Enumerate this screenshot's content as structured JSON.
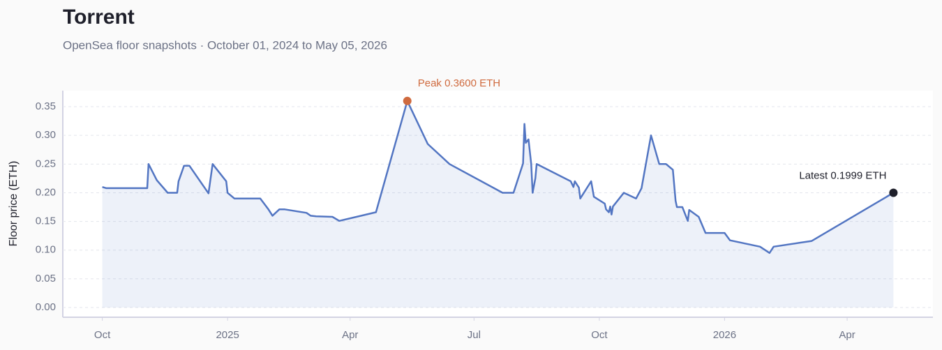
{
  "chart_data": {
    "type": "line",
    "title": "Torrent",
    "subtitle": "OpenSea floor snapshots · October 01, 2024 to May 05, 2026",
    "y_label": "Floor price (ETH)",
    "peak_label": "Peak 0.3600 ETH",
    "latest_label": "Latest 0.1999 ETH",
    "x": [
      "2024-10-01",
      "2024-10-04",
      "2024-11-03",
      "2024-11-04",
      "2024-11-10",
      "2024-11-18",
      "2024-11-25",
      "2024-11-26",
      "2024-11-30",
      "2024-12-04",
      "2024-12-18",
      "2024-12-21",
      "2024-12-31",
      "2025-01-01",
      "2025-01-06",
      "2025-01-25",
      "2025-01-31",
      "2025-02-03",
      "2025-02-08",
      "2025-02-12",
      "2025-02-28",
      "2025-03-03",
      "2025-03-07",
      "2025-03-19",
      "2025-03-24",
      "2025-04-20",
      "2025-05-13",
      "2025-05-28",
      "2025-06-13",
      "2025-07-22",
      "2025-07-30",
      "2025-08-06",
      "2025-08-07",
      "2025-08-08",
      "2025-08-10",
      "2025-08-12",
      "2025-08-13",
      "2025-08-15",
      "2025-08-16",
      "2025-09-10",
      "2025-09-12",
      "2025-09-13",
      "2025-09-16",
      "2025-09-17",
      "2025-09-25",
      "2025-09-27",
      "2025-10-05",
      "2025-10-06",
      "2025-10-08",
      "2025-10-09",
      "2025-10-10",
      "2025-10-11",
      "2025-10-19",
      "2025-10-28",
      "2025-11-01",
      "2025-11-08",
      "2025-11-14",
      "2025-11-19",
      "2025-11-24",
      "2025-11-26",
      "2025-11-27",
      "2025-12-01",
      "2025-12-05",
      "2025-12-06",
      "2025-12-13",
      "2025-12-18",
      "2026-01-01",
      "2026-01-05",
      "2026-01-27",
      "2026-02-03",
      "2026-02-06",
      "2026-03-06",
      "2026-05-05"
    ],
    "series": [
      {
        "name": "Floor price",
        "color": "#5275c2",
        "values": [
          0.21,
          0.208,
          0.208,
          0.25,
          0.222,
          0.2,
          0.2,
          0.22,
          0.247,
          0.247,
          0.199,
          0.25,
          0.22,
          0.2,
          0.19,
          0.19,
          0.171,
          0.16,
          0.171,
          0.171,
          0.165,
          0.16,
          0.159,
          0.158,
          0.151,
          0.166,
          0.36,
          0.285,
          0.25,
          0.2,
          0.2,
          0.251,
          0.32,
          0.287,
          0.293,
          0.25,
          0.2,
          0.225,
          0.25,
          0.22,
          0.21,
          0.22,
          0.209,
          0.19,
          0.22,
          0.193,
          0.181,
          0.171,
          0.166,
          0.176,
          0.162,
          0.176,
          0.2,
          0.19,
          0.208,
          0.3,
          0.25,
          0.25,
          0.24,
          0.186,
          0.175,
          0.175,
          0.151,
          0.17,
          0.158,
          0.13,
          0.13,
          0.117,
          0.106,
          0.095,
          0.106,
          0.116,
          0.1999
        ]
      }
    ],
    "peak_color": "#cf6a3e",
    "latest_color": "#1e1f2a",
    "xlim": [
      "2024-09-02",
      "2026-06-03"
    ],
    "xticks": [
      {
        "value": "2024-10-01",
        "label": "Oct"
      },
      {
        "value": "2025-01-01",
        "label": "2025"
      },
      {
        "value": "2025-04-01",
        "label": "Apr"
      },
      {
        "value": "2025-07-01",
        "label": "Jul"
      },
      {
        "value": "2025-10-01",
        "label": "Oct"
      },
      {
        "value": "2026-01-01",
        "label": "2026"
      },
      {
        "value": "2026-04-01",
        "label": "Apr"
      }
    ],
    "ylim": [
      -0.017,
      0.378
    ],
    "yticks": [
      {
        "value": 0,
        "label": "0.00"
      },
      0.05,
      {
        "value": 0.1,
        "label": "0.10"
      },
      0.15,
      {
        "value": 0.2,
        "label": "0.20"
      },
      0.25,
      {
        "value": 0.3,
        "label": "0.30"
      },
      0.35
    ],
    "grid": true
  }
}
